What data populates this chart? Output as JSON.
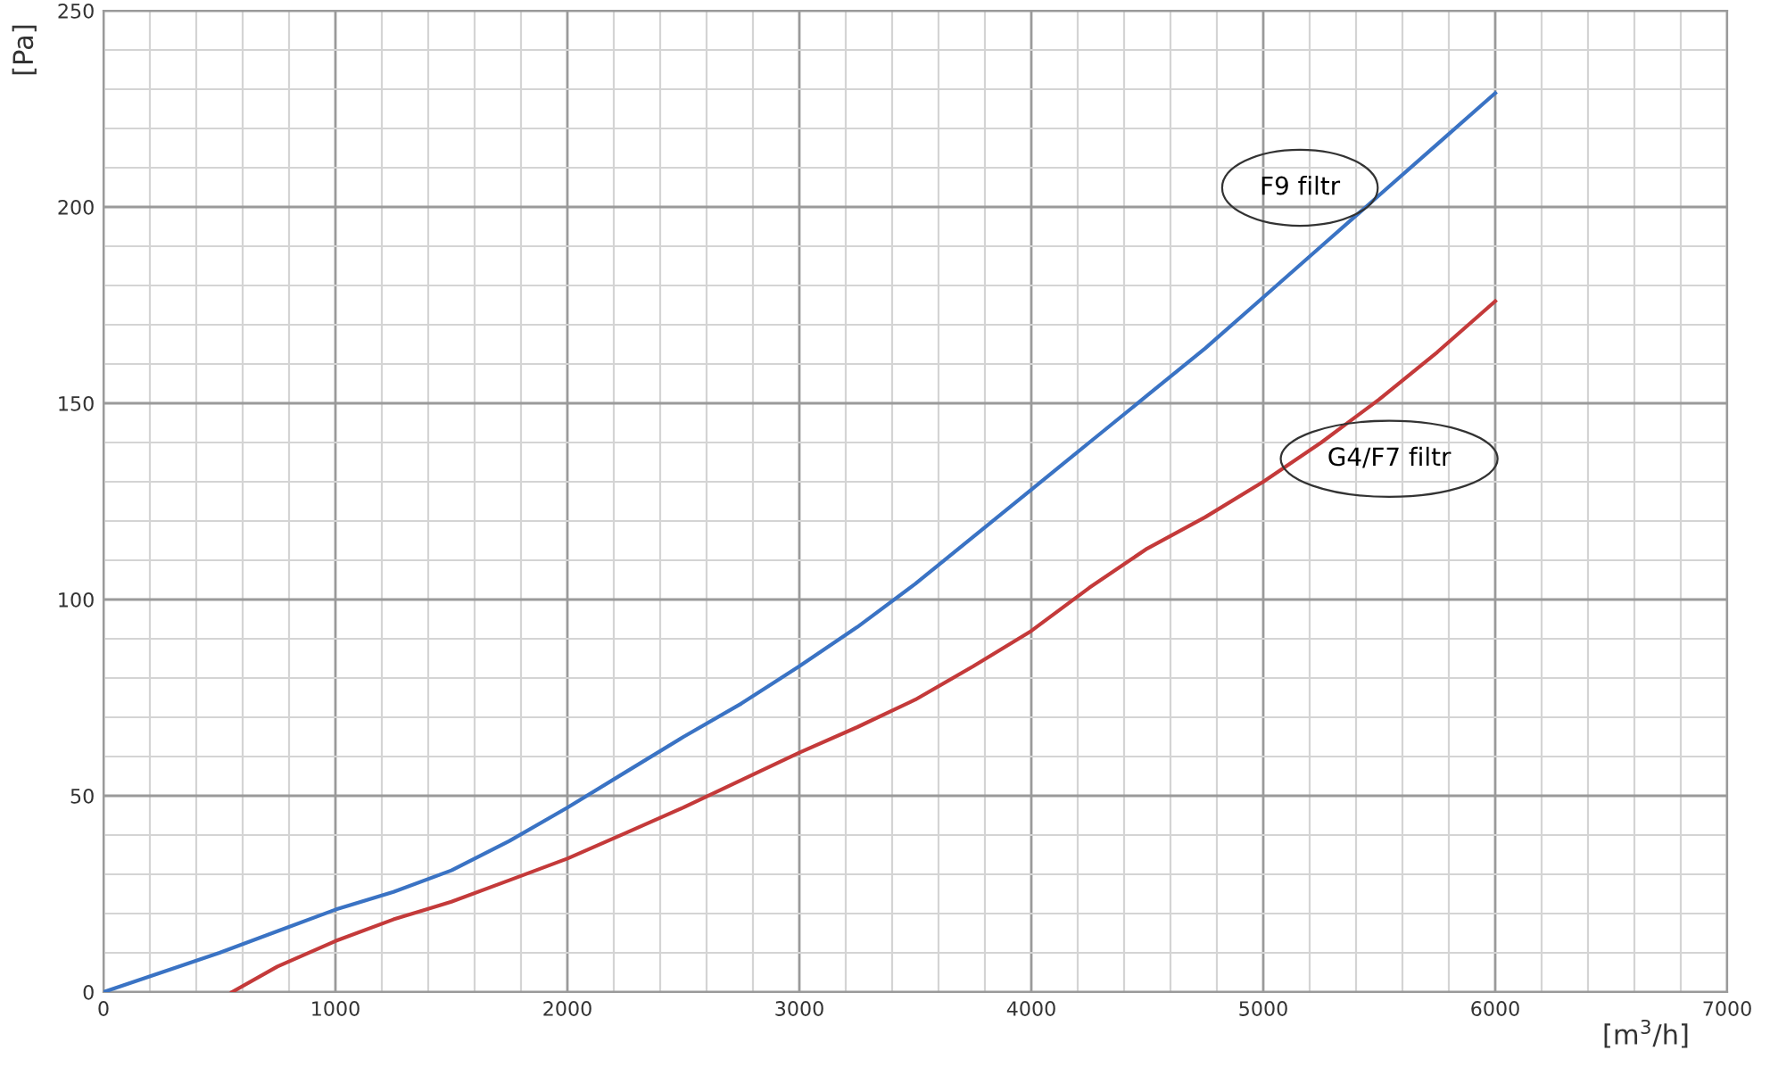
{
  "chart_data": {
    "type": "line",
    "xlabel": "[m$^{3}$/h]",
    "ylabel": "[Pa]",
    "series": [
      {
        "color": "#3a73c4",
        "x": [
          0,
          250,
          500,
          750,
          1000,
          1250,
          1500,
          1750,
          2000,
          2250,
          2500,
          2750,
          3000,
          3250,
          3500,
          3750,
          4000,
          4250,
          4500,
          4750,
          5000,
          5250,
          5500,
          5750,
          6000
        ],
        "values": [
          0,
          5,
          10,
          15.5,
          21,
          25.5,
          31,
          38.5,
          47,
          56,
          65,
          73.5,
          83,
          93,
          104,
          116,
          128,
          140,
          152,
          164,
          177,
          190,
          203,
          216,
          229
        ]
      },
      {
        "color": "#c43a3a",
        "x": [
          554,
          750,
          1000,
          1250,
          1500,
          1750,
          2000,
          2250,
          2500,
          2750,
          3000,
          3250,
          3500,
          3750,
          4000,
          4250,
          4500,
          4750,
          5000,
          5250,
          5500,
          5750,
          6000
        ],
        "values": [
          0,
          6.5,
          13,
          18.5,
          23,
          28.5,
          34,
          40.5,
          47,
          54,
          61,
          67.5,
          74.5,
          83,
          92,
          103,
          113,
          121,
          130,
          140,
          151,
          163,
          176
        ]
      }
    ],
    "xlim": [
      0,
      7000
    ],
    "ylim": [
      0,
      250
    ],
    "xticks": [
      0,
      {
        "value": 200,
        "label": null
      },
      {
        "value": 400,
        "label": null
      },
      {
        "value": 600,
        "label": null
      },
      {
        "value": 800,
        "label": null
      },
      1000,
      {
        "value": 1200,
        "label": null
      },
      {
        "value": 1400,
        "label": null
      },
      {
        "value": 1600,
        "label": null
      },
      {
        "value": 1800,
        "label": null
      },
      2000,
      {
        "value": 2200,
        "label": null
      },
      {
        "value": 2400,
        "label": null
      },
      {
        "value": 2600,
        "label": null
      },
      {
        "value": 2800,
        "label": null
      },
      3000,
      {
        "value": 3200,
        "label": null
      },
      {
        "value": 3400,
        "label": null
      },
      {
        "value": 3600,
        "label": null
      },
      {
        "value": 3800,
        "label": null
      },
      4000,
      {
        "value": 4200,
        "label": null
      },
      {
        "value": 4400,
        "label": null
      },
      {
        "value": 4600,
        "label": null
      },
      {
        "value": 4800,
        "label": null
      },
      5000,
      {
        "value": 5200,
        "label": null
      },
      {
        "value": 5400,
        "label": null
      },
      {
        "value": 5600,
        "label": null
      },
      {
        "value": 5800,
        "label": null
      },
      6000,
      {
        "value": 6200,
        "label": null
      },
      {
        "value": 6400,
        "label": null
      },
      {
        "value": 6600,
        "label": null
      },
      {
        "value": 6800,
        "label": null
      },
      7000
    ],
    "yticks": [
      0,
      {
        "value": 10,
        "label": null
      },
      {
        "value": 20,
        "label": null
      },
      {
        "value": 30,
        "label": null
      },
      {
        "value": 40,
        "label": null
      },
      50,
      {
        "value": 60,
        "label": null
      },
      {
        "value": 70,
        "label": null
      },
      {
        "value": 80,
        "label": null
      },
      {
        "value": 90,
        "label": null
      },
      100,
      {
        "value": 110,
        "label": null
      },
      {
        "value": 120,
        "label": null
      },
      {
        "value": 130,
        "label": null
      },
      {
        "value": 140,
        "label": null
      },
      150,
      {
        "value": 160,
        "label": null
      },
      {
        "value": 170,
        "label": null
      },
      {
        "value": 180,
        "label": null
      },
      {
        "value": 190,
        "label": null
      },
      200,
      {
        "value": 210,
        "label": null
      },
      {
        "value": 220,
        "label": null
      },
      {
        "value": 230,
        "label": null
      },
      {
        "value": 240,
        "label": null
      },
      250
    ],
    "grid": true,
    "annotations": [
      {
        "text": "F9 filtr",
        "x": 5500,
        "y": 203
      },
      {
        "text": "G4/F7 filtr",
        "x": 5500,
        "y": 151
      }
    ]
  }
}
